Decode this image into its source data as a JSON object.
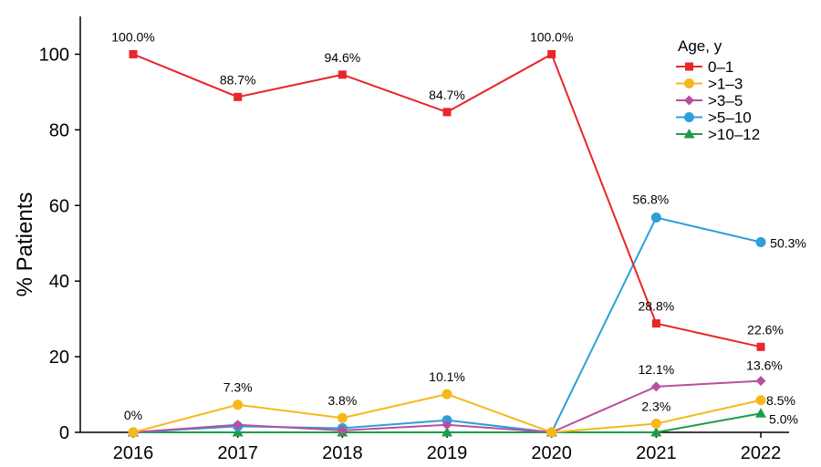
{
  "chart_data": {
    "type": "line",
    "xlabel": "",
    "ylabel": "% Patients",
    "ylim": [
      0,
      110
    ],
    "yticks": [
      0,
      20,
      40,
      60,
      80,
      100
    ],
    "x": [
      "2016",
      "2017",
      "2018",
      "2019",
      "2020",
      "2021",
      "2022"
    ],
    "grid": false,
    "legend": {
      "title": "Age, y",
      "placement": "top-right"
    },
    "series": [
      {
        "name": "0–1",
        "color": "#e8262b",
        "marker": "square",
        "values": [
          100.0,
          88.7,
          94.6,
          84.7,
          100.0,
          28.8,
          22.6
        ]
      },
      {
        "name": ">1–3",
        "color": "#f6b81c",
        "marker": "circle",
        "values": [
          0,
          7.3,
          3.8,
          10.1,
          0,
          2.3,
          8.5
        ]
      },
      {
        "name": ">3–5",
        "color": "#b94f9e",
        "marker": "diamond",
        "values": [
          0,
          2.0,
          0.5,
          2.0,
          0,
          12.1,
          13.6
        ]
      },
      {
        "name": ">5–10",
        "color": "#2e9fd8",
        "marker": "circle",
        "values": [
          0,
          1.6,
          1.1,
          3.2,
          0,
          56.8,
          50.3
        ]
      },
      {
        "name": ">10–12",
        "color": "#1e9b4b",
        "marker": "triangle",
        "values": [
          0,
          0,
          0,
          0,
          0,
          0,
          5.0
        ]
      }
    ],
    "annotations": [
      {
        "series": 0,
        "index": 0,
        "text": "100.0%"
      },
      {
        "series": 0,
        "index": 1,
        "text": "88.7%"
      },
      {
        "series": 0,
        "index": 2,
        "text": "94.6%"
      },
      {
        "series": 0,
        "index": 3,
        "text": "84.7%"
      },
      {
        "series": 0,
        "index": 4,
        "text": "100.0%"
      },
      {
        "series": 0,
        "index": 5,
        "text": "28.8%"
      },
      {
        "series": 0,
        "index": 6,
        "text": "22.6%"
      },
      {
        "series": 1,
        "index": 0,
        "text": "0%"
      },
      {
        "series": 1,
        "index": 1,
        "text": "7.3%"
      },
      {
        "series": 1,
        "index": 2,
        "text": "3.8%"
      },
      {
        "series": 1,
        "index": 3,
        "text": "10.1%"
      },
      {
        "series": 1,
        "index": 5,
        "text": "2.3%"
      },
      {
        "series": 1,
        "index": 6,
        "text": "8.5%"
      },
      {
        "series": 2,
        "index": 5,
        "text": "12.1%"
      },
      {
        "series": 2,
        "index": 6,
        "text": "13.6%"
      },
      {
        "series": 3,
        "index": 5,
        "text": "56.8%"
      },
      {
        "series": 3,
        "index": 6,
        "text": "50.3%"
      },
      {
        "series": 4,
        "index": 6,
        "text": "5.0%"
      }
    ]
  }
}
